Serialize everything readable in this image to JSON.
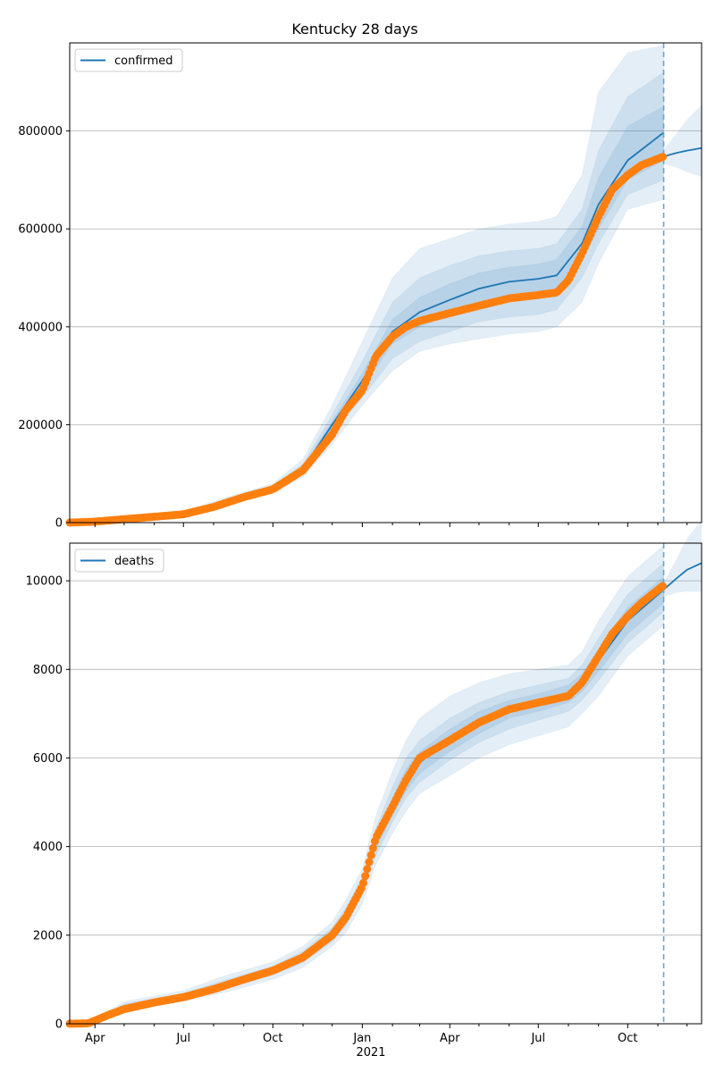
{
  "chart_data": {
    "type": "line",
    "title": "Kentucky 28 days",
    "x_axis": {
      "start": "2020-03-06",
      "end": "2021-12-16",
      "tick_labels": [
        {
          "date": "2020-04-01",
          "label": "Apr"
        },
        {
          "date": "2020-07-01",
          "label": "Jul"
        },
        {
          "date": "2020-10-01",
          "label": "Oct"
        },
        {
          "date": "2021-01-01",
          "label": "Jan"
        },
        {
          "date": "2021-04-01",
          "label": "Apr"
        },
        {
          "date": "2021-07-01",
          "label": "Jul"
        },
        {
          "date": "2021-10-01",
          "label": "Oct"
        }
      ],
      "year_label": "2021",
      "forecast_start": "2021-11-07"
    },
    "panels": [
      {
        "legend": "confirmed",
        "ylim": [
          0,
          980000
        ],
        "yticks": [
          0,
          200000,
          400000,
          600000,
          800000
        ],
        "yticklabels": [
          "0",
          "200000",
          "400000",
          "600000",
          "800000"
        ],
        "model_fit": {
          "dates": [
            "2020-03-06",
            "2020-05-01",
            "2020-07-01",
            "2020-08-15",
            "2020-10-01",
            "2020-11-01",
            "2020-12-01",
            "2021-01-01",
            "2021-02-01",
            "2021-03-01",
            "2021-04-01",
            "2021-05-01",
            "2021-06-01",
            "2021-07-01",
            "2021-07-20",
            "2021-08-15",
            "2021-09-01",
            "2021-10-01",
            "2021-11-07"
          ],
          "values": [
            0,
            8000,
            20000,
            45000,
            70000,
            110000,
            200000,
            290000,
            390000,
            430000,
            455000,
            478000,
            492000,
            498000,
            505000,
            570000,
            650000,
            740000,
            797000
          ]
        },
        "forecast": {
          "dates": [
            "2021-11-07",
            "2021-11-20",
            "2021-12-01",
            "2021-12-16"
          ],
          "values": [
            748000,
            755000,
            760000,
            765000
          ]
        },
        "observed": {
          "dates": [
            "2020-03-06",
            "2020-04-01",
            "2020-05-01",
            "2020-06-01",
            "2020-07-01",
            "2020-08-01",
            "2020-09-01",
            "2020-10-01",
            "2020-11-01",
            "2020-12-01",
            "2020-12-15",
            "2021-01-01",
            "2021-01-15",
            "2021-02-01",
            "2021-02-15",
            "2021-03-01",
            "2021-04-01",
            "2021-05-01",
            "2021-06-01",
            "2021-07-01",
            "2021-07-20",
            "2021-08-01",
            "2021-08-15",
            "2021-09-01",
            "2021-09-15",
            "2021-10-01",
            "2021-10-15",
            "2021-11-07"
          ],
          "values": [
            0,
            2000,
            7000,
            12000,
            17000,
            32000,
            52000,
            68000,
            107000,
            180000,
            230000,
            270000,
            340000,
            380000,
            400000,
            412000,
            428000,
            443000,
            458000,
            465000,
            470000,
            495000,
            550000,
            625000,
            680000,
            710000,
            730000,
            748000
          ]
        },
        "bands": [
          {
            "upper": [
              0,
              10000,
              23000,
              52000,
              80000,
              130000,
              240000,
              370000,
              500000,
              560000,
              580000,
              600000,
              610000,
              615000,
              625000,
              710000,
              880000,
              960000,
              975000
            ],
            "lower": [
              0,
              6000,
              17000,
              40000,
              60000,
              93000,
              160000,
              240000,
              310000,
              350000,
              365000,
              375000,
              385000,
              390000,
              400000,
              450000,
              530000,
              640000,
              660000
            ]
          },
          {
            "upper": [
              0,
              9000,
              21000,
              48000,
              75000,
              120000,
              220000,
              330000,
              450000,
              500000,
              525000,
              545000,
              555000,
              560000,
              570000,
              640000,
              760000,
              870000,
              920000
            ],
            "lower": [
              0,
              7000,
              18000,
              42000,
              64000,
              100000,
              180000,
              255000,
              335000,
              370000,
              390000,
              410000,
              420000,
              425000,
              435000,
              500000,
              570000,
              670000,
              700000
            ]
          },
          {
            "upper": [
              0,
              8500,
              20500,
              46000,
              72000,
              114000,
              208000,
              305000,
              415000,
              460000,
              488000,
              510000,
              522000,
              528000,
              538000,
              605000,
              705000,
              810000,
              850000
            ],
            "lower": [
              0,
              7500,
              19000,
              44000,
              67000,
              106000,
              192000,
              275000,
              365000,
              400000,
              425000,
              446000,
              460000,
              466000,
              473000,
              535000,
              600000,
              700000,
              740000
            ]
          }
        ]
      },
      {
        "legend": "deaths",
        "ylim": [
          0,
          10850
        ],
        "yticks": [
          0,
          2000,
          4000,
          6000,
          8000,
          10000
        ],
        "yticklabels": [
          "0",
          "2000",
          "4000",
          "6000",
          "8000",
          "10000"
        ],
        "model_fit": {
          "dates": [
            "2020-03-06",
            "2020-03-25",
            "2020-05-01",
            "2020-07-01",
            "2020-08-15",
            "2020-10-01",
            "2020-11-01",
            "2020-12-01",
            "2020-12-15",
            "2021-01-01",
            "2021-01-15",
            "2021-02-01",
            "2021-02-15",
            "2021-03-01",
            "2021-04-01",
            "2021-05-01",
            "2021-06-01",
            "2021-07-01",
            "2021-08-01",
            "2021-08-15",
            "2021-09-01",
            "2021-10-01",
            "2021-11-07"
          ],
          "values": [
            0,
            0,
            400,
            620,
            900,
            1200,
            1500,
            2000,
            2400,
            3100,
            4100,
            4900,
            5500,
            5900,
            6400,
            6800,
            7100,
            7250,
            7450,
            7700,
            8200,
            9100,
            9800
          ]
        },
        "forecast": {
          "dates": [
            "2021-11-07",
            "2021-11-20",
            "2021-12-01",
            "2021-12-16"
          ],
          "values": [
            9800,
            10050,
            10250,
            10400
          ]
        },
        "observed": {
          "dates": [
            "2020-03-06",
            "2020-03-25",
            "2020-04-15",
            "2020-05-01",
            "2020-06-01",
            "2020-07-01",
            "2020-08-01",
            "2020-09-01",
            "2020-10-01",
            "2020-11-01",
            "2020-12-01",
            "2020-12-15",
            "2021-01-01",
            "2021-01-15",
            "2021-02-01",
            "2021-02-15",
            "2021-03-01",
            "2021-04-01",
            "2021-05-01",
            "2021-06-01",
            "2021-07-01",
            "2021-08-01",
            "2021-08-15",
            "2021-09-01",
            "2021-09-15",
            "2021-10-01",
            "2021-10-15",
            "2021-11-07"
          ],
          "values": [
            0,
            10,
            200,
            330,
            480,
            600,
            780,
            1000,
            1200,
            1500,
            2000,
            2400,
            3100,
            4200,
            4900,
            5500,
            6000,
            6400,
            6800,
            7100,
            7250,
            7400,
            7700,
            8300,
            8800,
            9200,
            9500,
            9900
          ]
        },
        "bands": [
          {
            "upper": [
              0,
              20,
              500,
              750,
              1100,
              1400,
              1750,
              2300,
              2800,
              3500,
              4700,
              5700,
              6400,
              6900,
              7400,
              7700,
              7900,
              8000,
              8100,
              8400,
              9100,
              10100,
              10800
            ],
            "lower": [
              0,
              0,
              300,
              500,
              720,
              1000,
              1270,
              1750,
              2050,
              2700,
              3600,
              4300,
              4800,
              5200,
              5600,
              6000,
              6300,
              6500,
              6700,
              7000,
              7400,
              8300,
              9000
            ]
          },
          {
            "upper": [
              0,
              10,
              450,
              690,
              1000,
              1300,
              1640,
              2170,
              2620,
              3300,
              4400,
              5350,
              6000,
              6400,
              6900,
              7250,
              7500,
              7650,
              7800,
              8100,
              8700,
              9700,
              10400
            ],
            "lower": [
              0,
              0,
              350,
              560,
              800,
              1100,
              1380,
              1850,
              2200,
              2900,
              3800,
              4550,
              5100,
              5450,
              5950,
              6350,
              6650,
              6850,
              7050,
              7300,
              7750,
              8600,
              9300
            ]
          },
          {
            "upper": [
              0,
              5,
              420,
              650,
              950,
              1250,
              1570,
              2080,
              2500,
              3200,
              4250,
              5100,
              5750,
              6150,
              6650,
              7050,
              7300,
              7450,
              7650,
              7900,
              8450,
              9400,
              10100
            ],
            "lower": [
              0,
              0,
              380,
              590,
              850,
              1150,
              1430,
              1920,
              2300,
              3000,
              3950,
              4700,
              5250,
              5650,
              6150,
              6550,
              6900,
              7050,
              7250,
              7500,
              7950,
              8800,
              9500
            ]
          }
        ]
      }
    ]
  },
  "colors": {
    "model": "#1f77b4",
    "observed": "#ff7f0e",
    "band": "#1f77b4",
    "forecast_line": "#6fa3c7"
  }
}
